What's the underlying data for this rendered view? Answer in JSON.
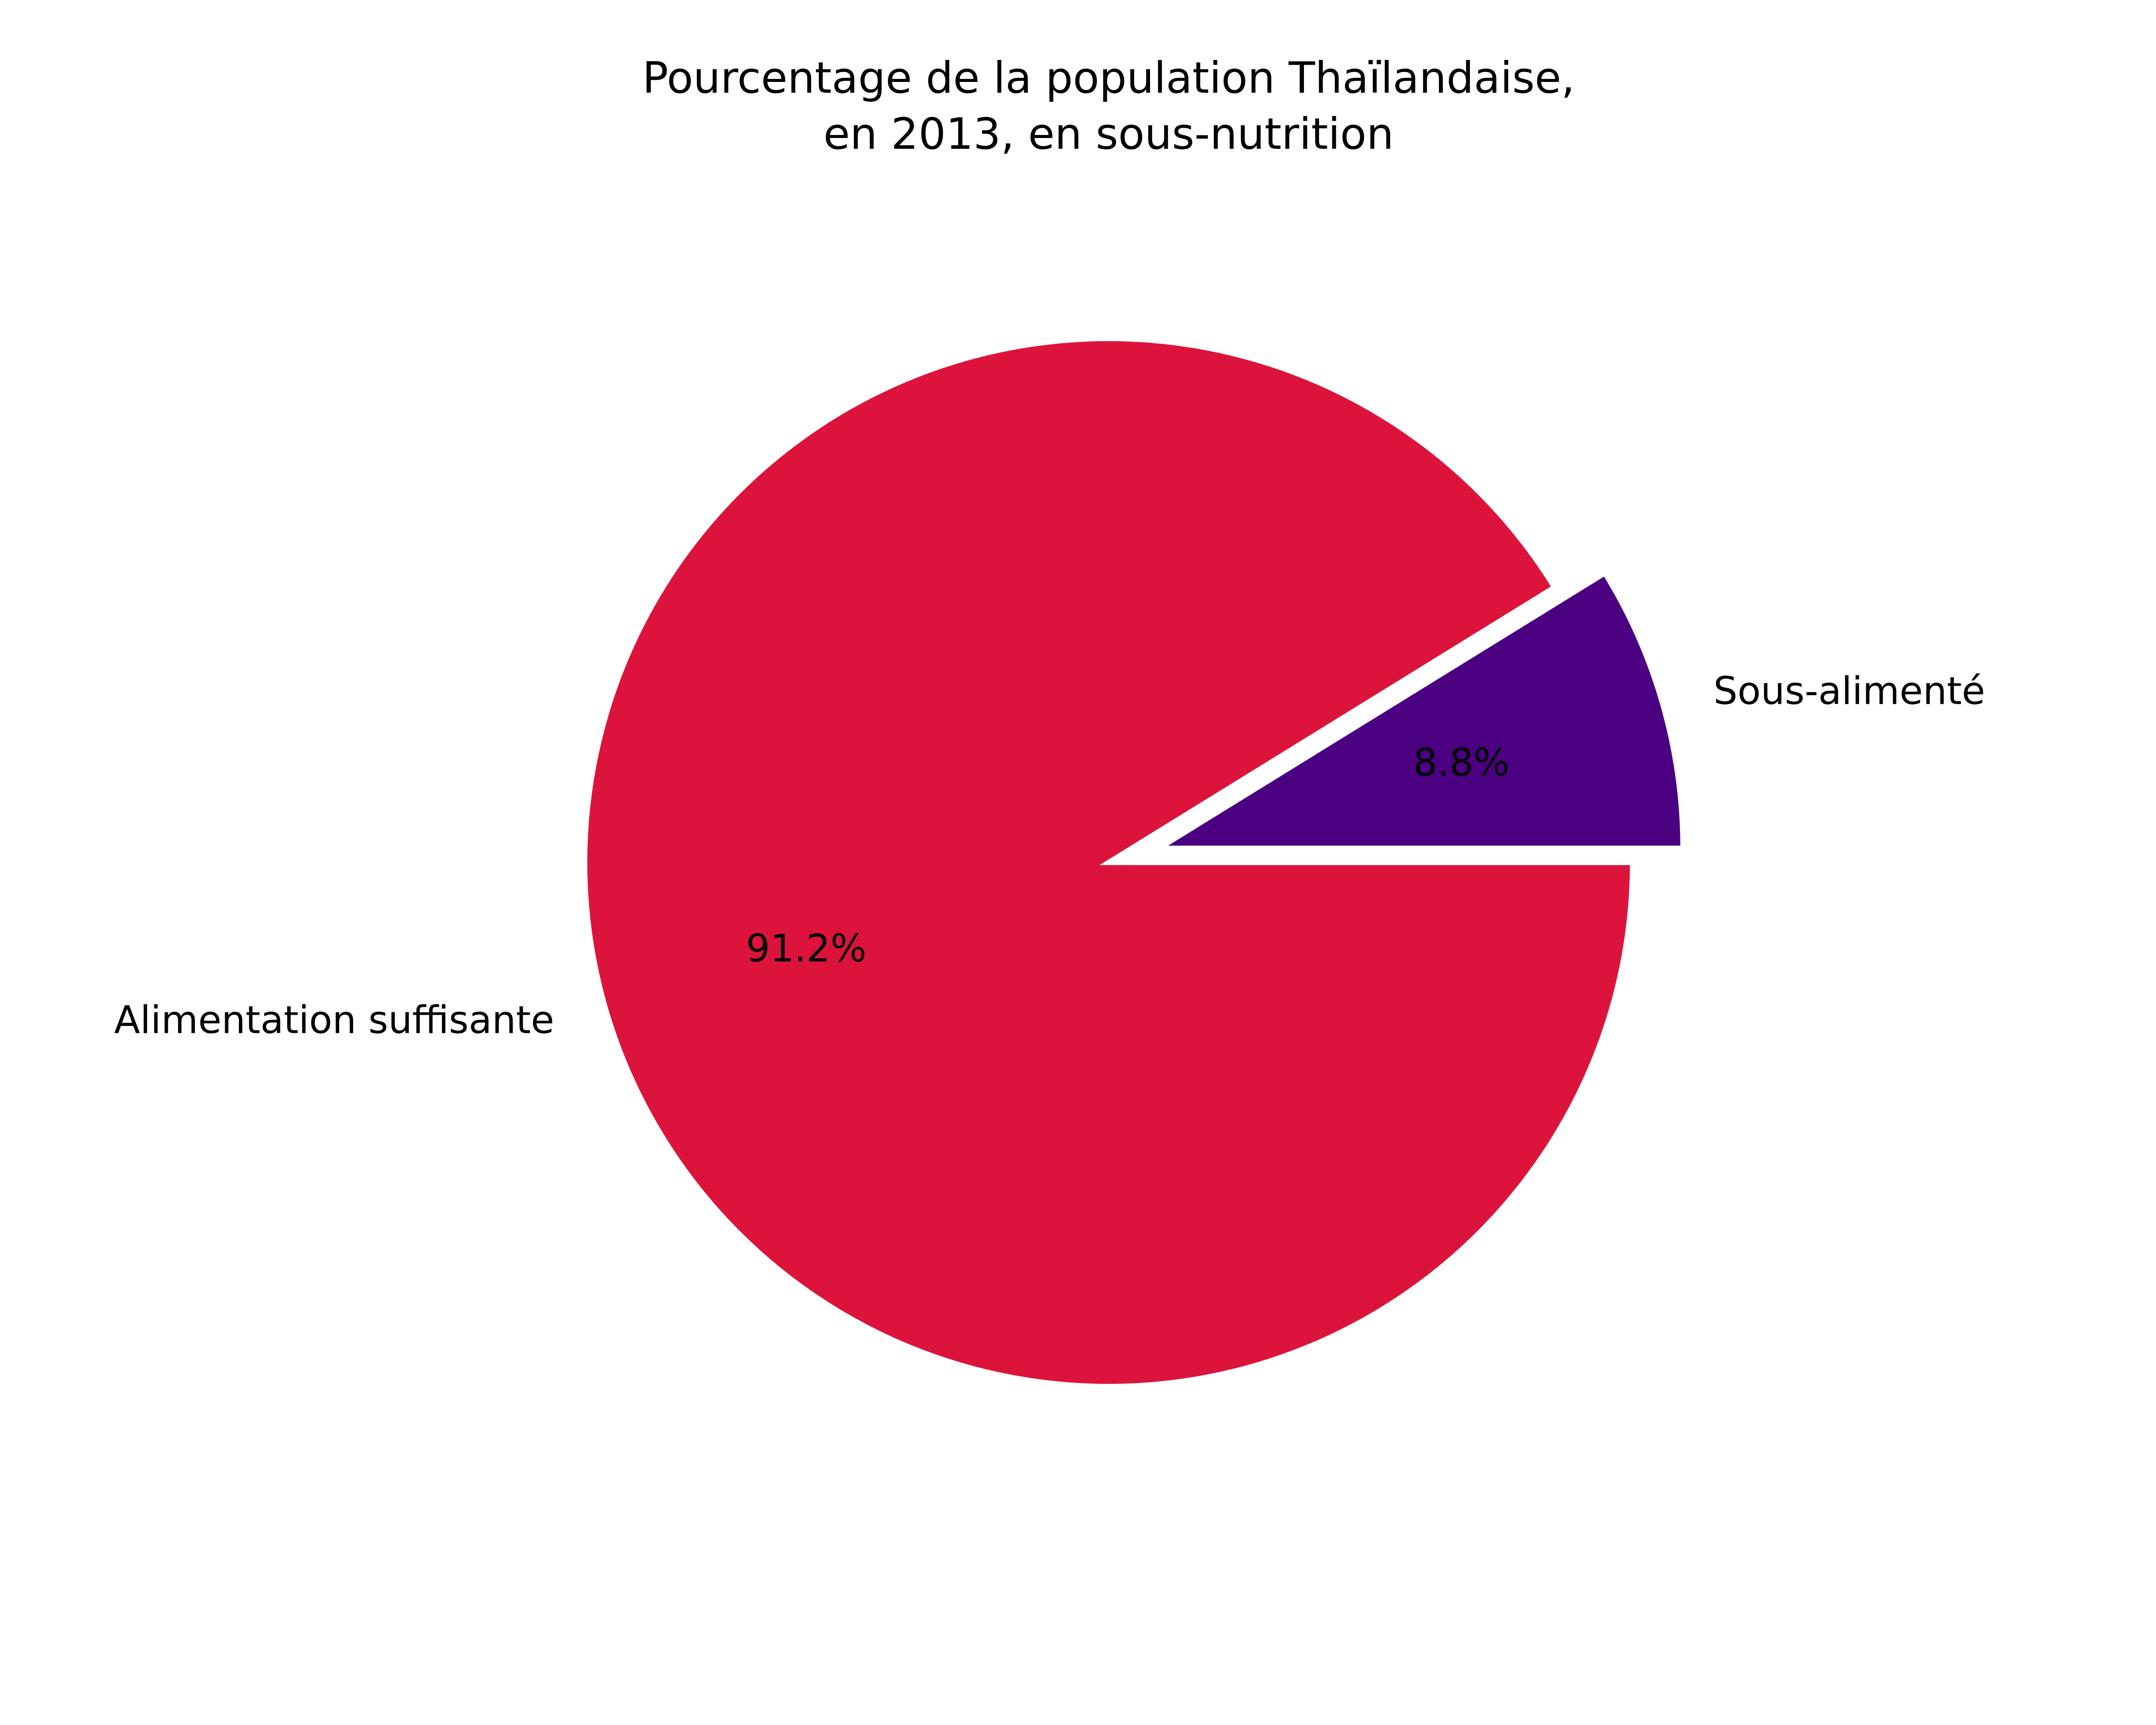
{
  "chart_data": {
    "type": "pie",
    "title_lines": [
      "Pourcentage de la population Thaïlandaise,",
      "en 2013, en sous-nutrition"
    ],
    "slices": [
      {
        "label": "Sous-alimenté",
        "value": 8.8,
        "value_label": "8.8%",
        "color": "#4B0082",
        "exploded": true
      },
      {
        "label": "Alimentation suffisante",
        "value": 91.2,
        "value_label": "91.2%",
        "color": "#DC143C",
        "exploded": false
      }
    ]
  }
}
